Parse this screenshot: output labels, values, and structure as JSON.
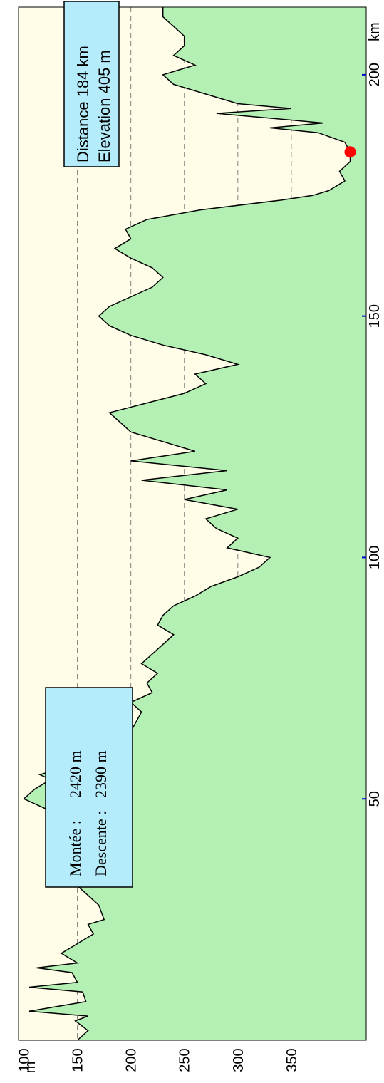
{
  "chart_data": {
    "type": "area",
    "title": "",
    "xlabel": "km",
    "ylabel": "m",
    "xlim": [
      0,
      214
    ],
    "ylim": [
      95,
      420
    ],
    "x_ticks": [
      50,
      100,
      150,
      200
    ],
    "y_ticks": [
      100,
      150,
      200,
      250,
      300,
      350
    ],
    "grid": true,
    "orientation": "rotated-90-ccw",
    "colors": {
      "fill": "#b4f0b4",
      "line": "#000000",
      "plot_bg": "#fffde7",
      "marker": "#ff0000",
      "box_fill": "#b4ecfc"
    },
    "series": [
      {
        "x": [
          0,
          2,
          4,
          5,
          6,
          8,
          10,
          11,
          12,
          14,
          15,
          16,
          18,
          20,
          22,
          24,
          25,
          28,
          30,
          32,
          34,
          35,
          36,
          38,
          40,
          42,
          44,
          46,
          48,
          50,
          52,
          54,
          55,
          56,
          58,
          60,
          62,
          64,
          66,
          68,
          70,
          72,
          74,
          76,
          78,
          80,
          82,
          84,
          86,
          88,
          90,
          92,
          94,
          96,
          98,
          100,
          102,
          104,
          106,
          108,
          110,
          112,
          114,
          116,
          118,
          120,
          122,
          124,
          126,
          128,
          130,
          132,
          134,
          136,
          138,
          140,
          142,
          144,
          146,
          148,
          150,
          152,
          154,
          156,
          158,
          160,
          162,
          164,
          166,
          168,
          170,
          172,
          174,
          175,
          176,
          178,
          180,
          182,
          184,
          186,
          188,
          189,
          190,
          192,
          193,
          194,
          196,
          198,
          200,
          202,
          204,
          206,
          208,
          210,
          212,
          214
        ],
        "y": [
          150,
          160,
          148,
          160,
          105,
          158,
          155,
          105,
          150,
          145,
          112,
          150,
          135,
          150,
          165,
          160,
          175,
          170,
          160,
          150,
          165,
          158,
          170,
          160,
          145,
          150,
          140,
          125,
          120,
          100,
          110,
          125,
          115,
          130,
          175,
          195,
          190,
          200,
          205,
          210,
          200,
          220,
          215,
          225,
          210,
          220,
          230,
          240,
          225,
          230,
          240,
          260,
          275,
          300,
          320,
          330,
          290,
          300,
          280,
          270,
          300,
          250,
          290,
          210,
          290,
          200,
          260,
          230,
          200,
          190,
          180,
          215,
          250,
          270,
          260,
          300,
          270,
          230,
          200,
          180,
          170,
          180,
          200,
          220,
          230,
          220,
          200,
          185,
          200,
          195,
          215,
          265,
          340,
          370,
          385,
          400,
          395,
          405,
          405,
          400,
          375,
          330,
          380,
          280,
          350,
          300,
          270,
          240,
          230,
          260,
          240,
          250,
          250,
          240,
          230,
          230
        ]
      }
    ],
    "marker": {
      "x": 184,
      "y": 405
    },
    "tooltip": {
      "distance_label": "Distance 184 km",
      "elevation_label": "Elevation 405 m"
    },
    "summary": {
      "climb_label": "Montée :",
      "climb_value": "2420 m",
      "descent_label": "Descente :",
      "descent_value": "2390 m"
    }
  }
}
